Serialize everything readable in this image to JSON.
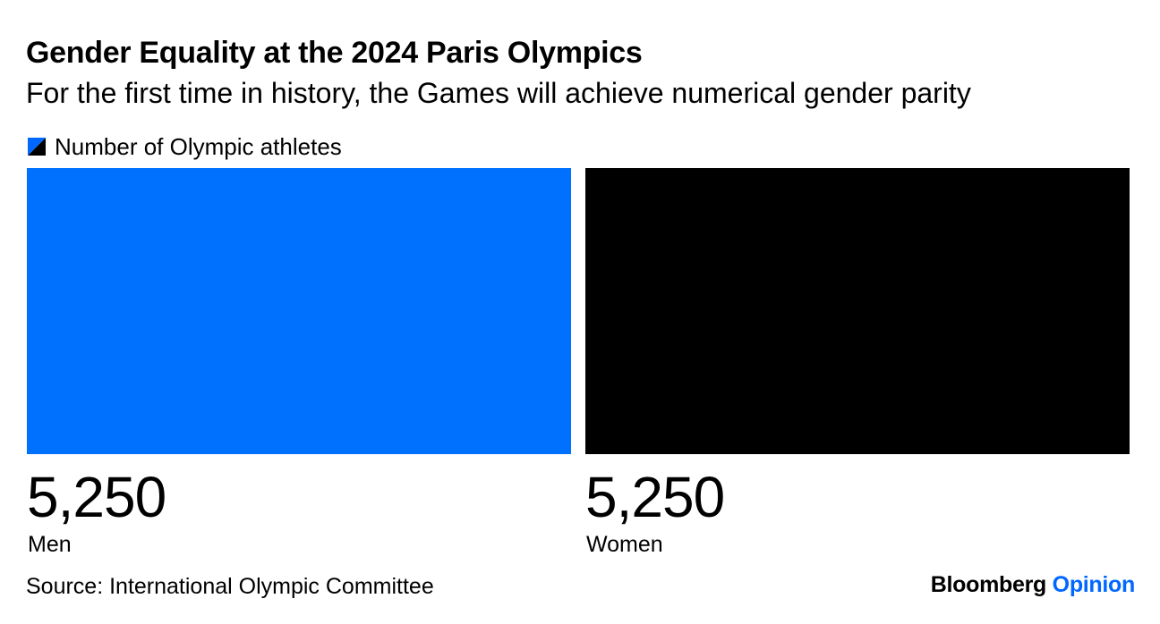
{
  "title": "Gender Equality at the 2024 Paris Olympics",
  "subtitle": "For the first time in history, the Games will achieve numerical gender parity",
  "legend": {
    "label": "Number of Olympic athletes"
  },
  "source": "Source: International Olympic Committee",
  "brand": {
    "name": "Bloomberg",
    "section": "Opinion",
    "section_color": "#0068ff"
  },
  "chart_data": {
    "type": "bar",
    "categories": [
      "Men",
      "Women"
    ],
    "series": [
      {
        "name": "Number of Olympic athletes",
        "values": [
          5250,
          5250
        ]
      }
    ],
    "value_labels": [
      "5,250",
      "5,250"
    ],
    "colors": [
      "#0070ff",
      "#000000"
    ],
    "legend_colors": [
      "#0068ff",
      "#000000"
    ],
    "title": "Gender Equality at the 2024 Paris Olympics",
    "subtitle": "For the first time in history, the Games will achieve numerical gender parity",
    "ylim": [
      0,
      5250
    ],
    "grid": false,
    "legend_position": "top-left"
  }
}
